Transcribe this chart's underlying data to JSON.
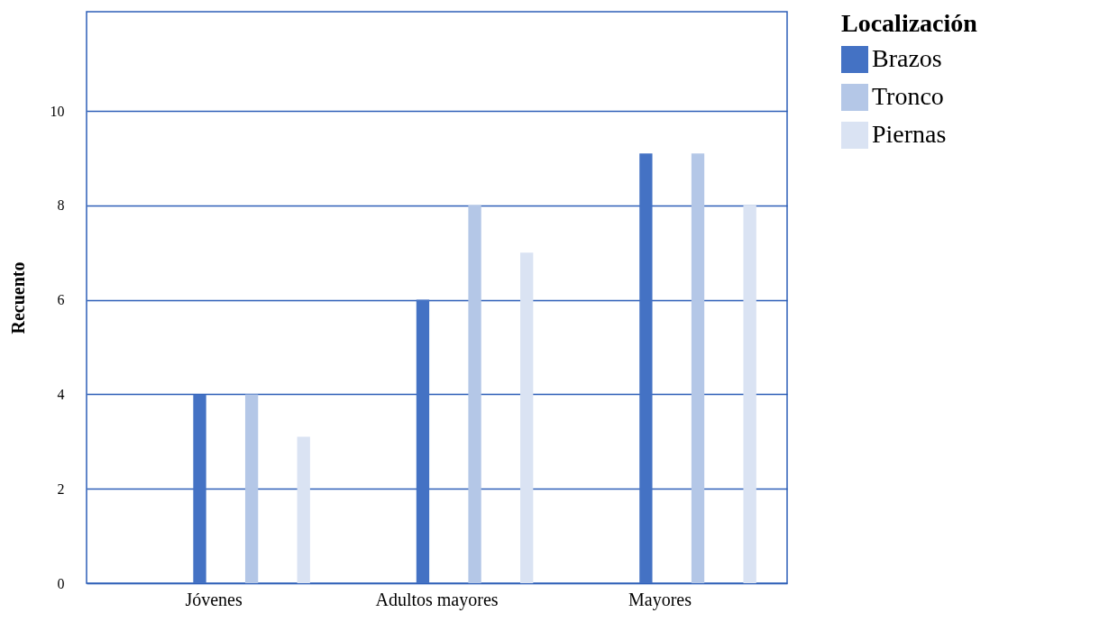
{
  "chart_data": {
    "type": "bar",
    "ylabel": "Recuento",
    "legend_title": "Localización",
    "categories": [
      "Jóvenes",
      "Adultos mayores",
      "Mayores"
    ],
    "series": [
      {
        "name": "Brazos",
        "color": "#4472c4",
        "values": [
          4,
          6,
          9.1
        ]
      },
      {
        "name": "Tronco",
        "color": "#b4c7e7",
        "values": [
          4,
          8,
          9.1
        ]
      },
      {
        "name": "Piernas",
        "color": "#dae3f3",
        "values": [
          3.1,
          7,
          8
        ]
      }
    ],
    "ylim": [
      0,
      12.1
    ],
    "yticks": [
      0,
      2,
      4,
      6,
      8,
      10
    ],
    "grid": "y",
    "legend": "top right"
  }
}
